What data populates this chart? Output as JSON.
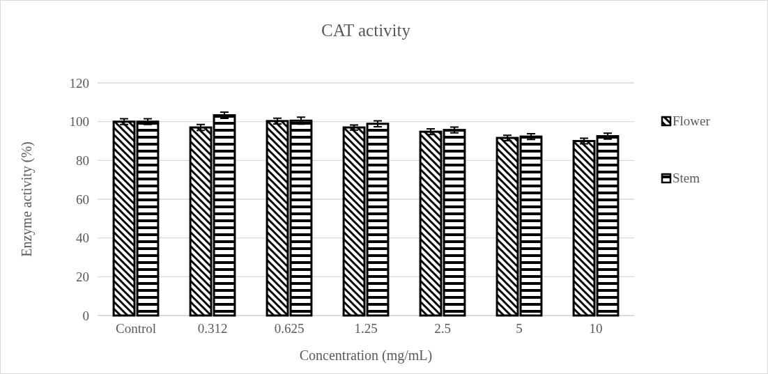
{
  "chart_data": {
    "type": "bar",
    "title": "CAT activity",
    "xlabel": "Concentration (mg/mL)",
    "ylabel": "Enzyme activity (%)",
    "categories": [
      "Control",
      "0.312",
      "0.625",
      "1.25",
      "2.5",
      "5",
      "10"
    ],
    "series": [
      {
        "name": "Flower",
        "color": "#000000",
        "values": [
          100,
          97,
          100.3,
          97,
          94.8,
          91.6,
          90
        ],
        "errors": [
          1.5,
          1.5,
          1.5,
          1.3,
          1.5,
          1.4,
          1.4
        ]
      },
      {
        "name": "Stem",
        "color": "#000000",
        "values": [
          100,
          103.3,
          100.5,
          98.9,
          95.7,
          92.3,
          92.5
        ],
        "errors": [
          1.5,
          1.6,
          1.8,
          1.5,
          1.5,
          1.5,
          1.5
        ]
      }
    ],
    "ylim": [
      0,
      120
    ],
    "yticks": [
      0,
      20,
      40,
      60,
      80,
      100,
      120
    ],
    "grid": "y",
    "legend": "right"
  }
}
